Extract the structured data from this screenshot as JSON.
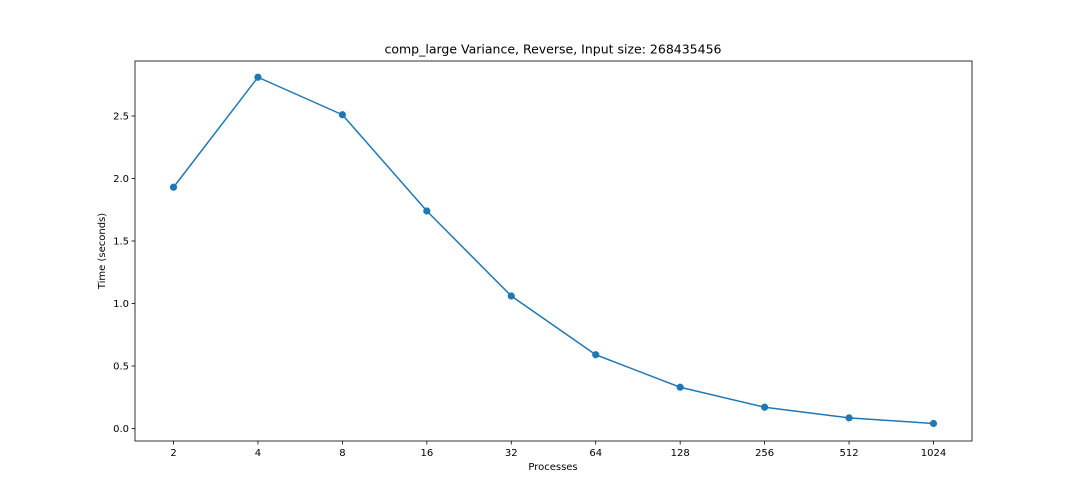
{
  "chart_data": {
    "type": "line",
    "title": "comp_large Variance, Reverse, Input size: 268435456",
    "xlabel": "Processes",
    "ylabel": "Time (seconds)",
    "categories": [
      "2",
      "4",
      "8",
      "16",
      "32",
      "64",
      "128",
      "256",
      "512",
      "1024"
    ],
    "series": [
      {
        "values": [
          1.93,
          2.81,
          2.51,
          1.74,
          1.06,
          0.59,
          0.33,
          0.17,
          0.085,
          0.04
        ],
        "color": "#1f77b4",
        "marker": "circle"
      }
    ],
    "yticks": [
      "0.0",
      "0.5",
      "1.0",
      "1.5",
      "2.0",
      "2.5"
    ],
    "ylim": [
      -0.1,
      2.94
    ],
    "grid": false
  }
}
